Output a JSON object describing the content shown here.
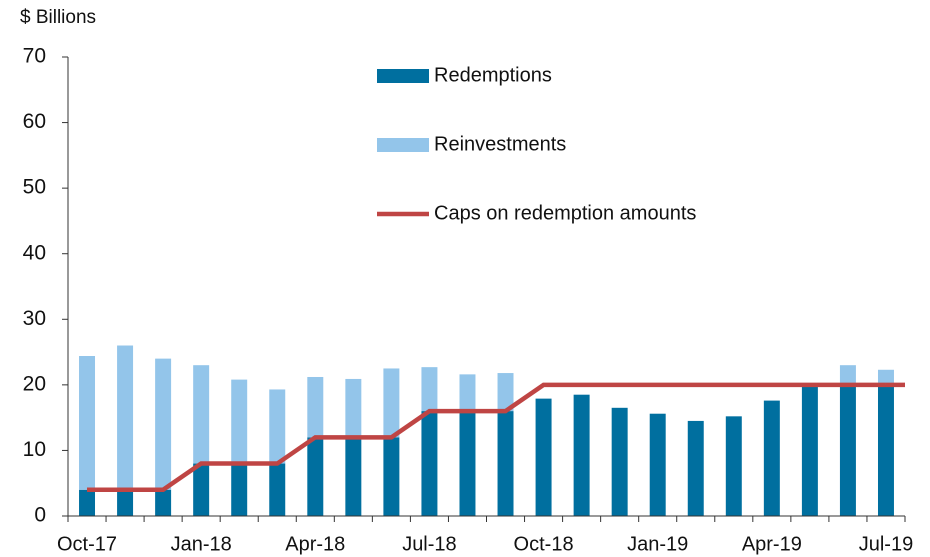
{
  "chart_data": {
    "type": "bar",
    "y_label": "$ Billions",
    "categories": [
      "Oct-17",
      null,
      null,
      "Jan-18",
      null,
      null,
      "Apr-18",
      null,
      null,
      "Jul-18",
      null,
      null,
      "Oct-18",
      null,
      null,
      "Jan-19",
      null,
      null,
      "Apr-19",
      null,
      null,
      "Jul-19"
    ],
    "series": [
      {
        "name": "Redemptions",
        "color": "#006f9f",
        "kind": "bar",
        "values": [
          4,
          4,
          4,
          8,
          8,
          8,
          12,
          12,
          12,
          16,
          16,
          16,
          17.9,
          18.5,
          16.5,
          15.6,
          14.5,
          15.2,
          17.6,
          20,
          20,
          20
        ]
      },
      {
        "name": "Reinvestments",
        "color": "#93c5ea",
        "kind": "bar",
        "values": [
          20.4,
          22,
          20,
          15,
          12.8,
          11.3,
          9.2,
          8.9,
          10.5,
          6.7,
          5.6,
          5.8,
          0,
          0,
          0,
          0,
          0,
          0,
          0,
          0,
          3,
          2.3
        ]
      },
      {
        "name": "Caps on redemption amounts",
        "color": "#bf4544",
        "kind": "line",
        "values": [
          4,
          4,
          4,
          8,
          8,
          8,
          12,
          12,
          12,
          16,
          16,
          16,
          20,
          20,
          20,
          20,
          20,
          20,
          20,
          20,
          20,
          20
        ]
      }
    ],
    "ylim": [
      0,
      70
    ],
    "yticks": [
      0,
      10,
      20,
      30,
      40,
      50,
      60,
      70
    ],
    "grid": false
  }
}
